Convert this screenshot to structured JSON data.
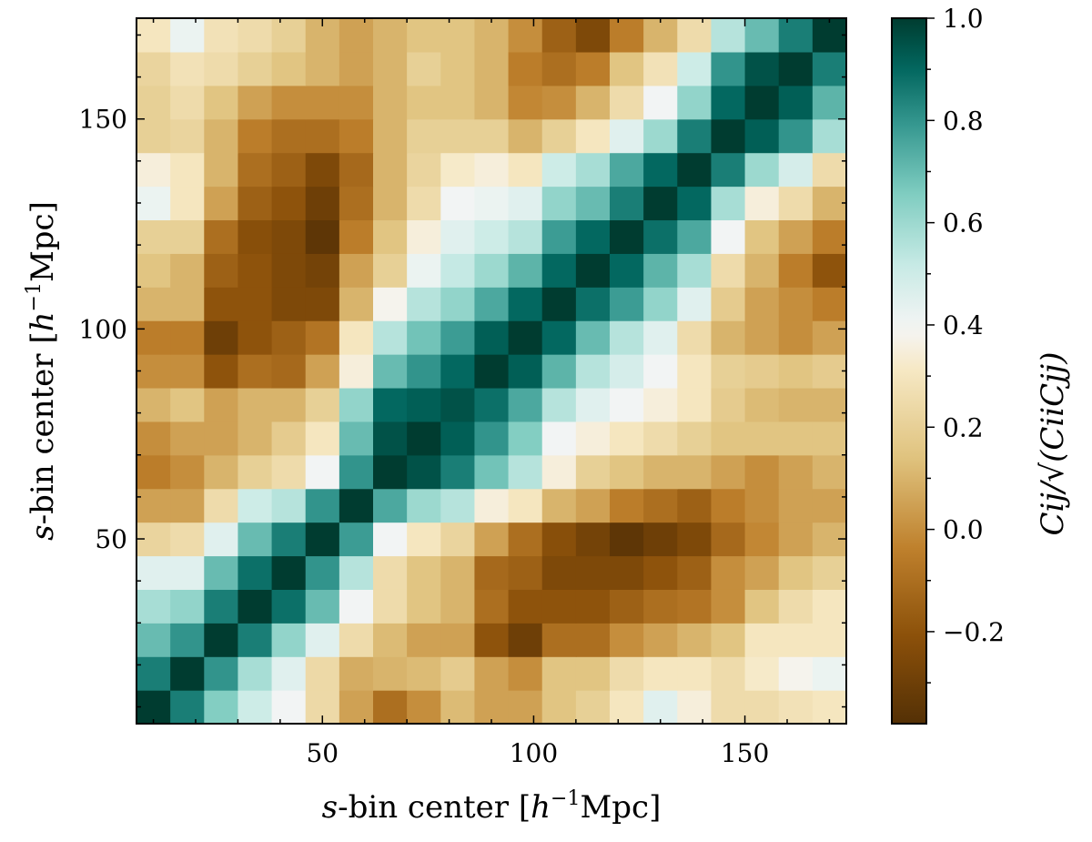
{
  "chart_data": {
    "type": "heatmap",
    "colormap": "BrBG",
    "x_centers": [
      10,
      18,
      26,
      34,
      42,
      50,
      58,
      66,
      74,
      82,
      90,
      98,
      106,
      114,
      122,
      130,
      138,
      146,
      154,
      162,
      170
    ],
    "y_centers": [
      10,
      18,
      26,
      34,
      42,
      50,
      58,
      66,
      74,
      82,
      90,
      98,
      106,
      114,
      122,
      130,
      138,
      146,
      154,
      162,
      170
    ],
    "bin_width": 8,
    "xlim": [
      6,
      174
    ],
    "ylim": [
      6,
      174
    ],
    "x_ticks": [
      50,
      100,
      150
    ],
    "y_ticks": [
      50,
      100,
      150
    ],
    "x_tick_labels": [
      "50",
      "100",
      "150"
    ],
    "y_tick_labels": [
      "50",
      "100",
      "150"
    ],
    "xlabel": {
      "var": "s",
      "text": "-bin center [",
      "sym": "h",
      "sup": "−1",
      "unit": "Mpc]"
    },
    "ylabel": {
      "var": "s",
      "text": "-bin center [",
      "sym": "h",
      "sup": "−1",
      "unit": "Mpc]"
    },
    "colorbar": {
      "label": "Cij/√(CiiCjj)",
      "vmin": -0.38,
      "vmax": 1.0,
      "ticks": [
        -0.2,
        0.0,
        0.2,
        0.4,
        0.6,
        0.8,
        1.0
      ],
      "tick_labels": [
        "−0.2",
        "0.0",
        "0.2",
        "0.4",
        "0.6",
        "0.8",
        "1.0"
      ]
    },
    "grid": false,
    "values": [
      [
        1.0,
        0.85,
        0.65,
        0.5,
        0.4,
        0.24,
        0.05,
        -0.1,
        0.0,
        0.12,
        0.05,
        0.05,
        0.15,
        0.2,
        0.3,
        0.45,
        0.35,
        0.25,
        0.25,
        0.28,
        0.3
      ],
      [
        0.85,
        1.0,
        0.8,
        0.58,
        0.45,
        0.24,
        0.08,
        0.1,
        0.12,
        0.18,
        0.05,
        0.0,
        0.15,
        0.15,
        0.25,
        0.3,
        0.3,
        0.25,
        0.32,
        0.38,
        0.42
      ],
      [
        0.7,
        0.8,
        1.0,
        0.85,
        0.62,
        0.45,
        0.25,
        0.12,
        0.05,
        0.05,
        -0.2,
        -0.3,
        -0.1,
        -0.1,
        0.0,
        0.05,
        0.1,
        0.15,
        0.3,
        0.3,
        0.3
      ],
      [
        0.58,
        0.62,
        0.85,
        1.0,
        0.88,
        0.7,
        0.4,
        0.25,
        0.15,
        0.1,
        -0.1,
        -0.2,
        -0.2,
        -0.2,
        -0.15,
        -0.1,
        -0.08,
        0.0,
        0.15,
        0.25,
        0.3
      ],
      [
        0.45,
        0.45,
        0.7,
        0.88,
        1.0,
        0.8,
        0.55,
        0.25,
        0.15,
        0.1,
        -0.12,
        -0.15,
        -0.25,
        -0.25,
        -0.25,
        -0.2,
        -0.15,
        0.0,
        0.05,
        0.15,
        0.2
      ],
      [
        0.22,
        0.25,
        0.45,
        0.7,
        0.85,
        1.0,
        0.78,
        0.4,
        0.3,
        0.22,
        0.05,
        -0.1,
        -0.22,
        -0.28,
        -0.35,
        -0.3,
        -0.25,
        -0.12,
        -0.02,
        0.05,
        0.1
      ],
      [
        0.05,
        0.05,
        0.25,
        0.5,
        0.55,
        0.8,
        1.0,
        0.75,
        0.6,
        0.55,
        0.35,
        0.3,
        0.1,
        0.05,
        -0.05,
        -0.1,
        -0.15,
        -0.05,
        0.0,
        0.05,
        0.05
      ],
      [
        -0.05,
        0.0,
        0.1,
        0.2,
        0.25,
        0.4,
        0.8,
        1.0,
        0.95,
        0.85,
        0.68,
        0.55,
        0.35,
        0.2,
        0.15,
        0.1,
        0.1,
        0.05,
        0.0,
        0.05,
        0.1
      ],
      [
        0.0,
        0.05,
        0.05,
        0.1,
        0.18,
        0.3,
        0.7,
        0.95,
        1.0,
        0.92,
        0.8,
        0.65,
        0.4,
        0.35,
        0.3,
        0.25,
        0.2,
        0.15,
        0.15,
        0.15,
        0.15
      ],
      [
        0.1,
        0.15,
        0.05,
        0.1,
        0.1,
        0.2,
        0.62,
        0.9,
        0.92,
        0.95,
        0.88,
        0.75,
        0.55,
        0.45,
        0.4,
        0.35,
        0.3,
        0.18,
        0.12,
        0.1,
        0.1
      ],
      [
        0.0,
        0.0,
        -0.2,
        -0.1,
        -0.12,
        0.05,
        0.35,
        0.7,
        0.8,
        0.9,
        1.0,
        0.92,
        0.72,
        0.55,
        0.48,
        0.4,
        0.3,
        0.2,
        0.18,
        0.15,
        0.18
      ],
      [
        -0.05,
        -0.05,
        -0.3,
        -0.2,
        -0.15,
        -0.08,
        0.3,
        0.55,
        0.68,
        0.78,
        0.92,
        1.0,
        0.9,
        0.7,
        0.55,
        0.45,
        0.25,
        0.1,
        0.05,
        0.0,
        0.05
      ],
      [
        0.1,
        0.1,
        -0.2,
        -0.2,
        -0.25,
        -0.25,
        0.1,
        0.38,
        0.55,
        0.62,
        0.75,
        0.9,
        1.0,
        0.88,
        0.78,
        0.62,
        0.45,
        0.18,
        0.05,
        0.0,
        -0.05
      ],
      [
        0.15,
        0.1,
        -0.15,
        -0.2,
        -0.25,
        -0.28,
        0.05,
        0.2,
        0.42,
        0.52,
        0.6,
        0.72,
        0.9,
        1.0,
        0.9,
        0.72,
        0.58,
        0.25,
        0.1,
        -0.05,
        -0.2
      ],
      [
        0.2,
        0.2,
        -0.1,
        -0.22,
        -0.25,
        -0.35,
        -0.05,
        0.15,
        0.35,
        0.45,
        0.5,
        0.55,
        0.78,
        0.9,
        1.0,
        0.88,
        0.75,
        0.4,
        0.15,
        0.05,
        -0.05
      ],
      [
        0.42,
        0.3,
        0.05,
        -0.15,
        -0.2,
        -0.3,
        -0.1,
        0.1,
        0.25,
        0.4,
        0.42,
        0.45,
        0.62,
        0.7,
        0.85,
        1.0,
        0.9,
        0.58,
        0.35,
        0.25,
        0.1
      ],
      [
        0.35,
        0.3,
        0.1,
        -0.1,
        -0.15,
        -0.25,
        -0.12,
        0.1,
        0.22,
        0.32,
        0.35,
        0.3,
        0.5,
        0.58,
        0.75,
        0.9,
        1.0,
        0.85,
        0.6,
        0.48,
        0.25
      ],
      [
        0.2,
        0.22,
        0.1,
        -0.05,
        -0.1,
        -0.1,
        -0.05,
        0.1,
        0.2,
        0.2,
        0.2,
        0.1,
        0.2,
        0.3,
        0.45,
        0.6,
        0.85,
        1.0,
        0.92,
        0.8,
        0.58
      ],
      [
        0.2,
        0.25,
        0.15,
        0.05,
        0.0,
        0.0,
        0.0,
        0.1,
        0.15,
        0.15,
        0.1,
        -0.02,
        0.0,
        0.1,
        0.25,
        0.4,
        0.62,
        0.9,
        1.0,
        0.92,
        0.72
      ],
      [
        0.22,
        0.28,
        0.25,
        0.2,
        0.15,
        0.1,
        0.05,
        0.1,
        0.2,
        0.15,
        0.1,
        -0.05,
        -0.1,
        -0.05,
        0.15,
        0.28,
        0.5,
        0.8,
        0.95,
        1.0,
        0.85
      ],
      [
        0.3,
        0.42,
        0.28,
        0.25,
        0.2,
        0.1,
        0.05,
        0.1,
        0.15,
        0.15,
        0.1,
        0.0,
        -0.15,
        -0.25,
        -0.05,
        0.1,
        0.25,
        0.55,
        0.7,
        0.85,
        1.0
      ]
    ]
  }
}
